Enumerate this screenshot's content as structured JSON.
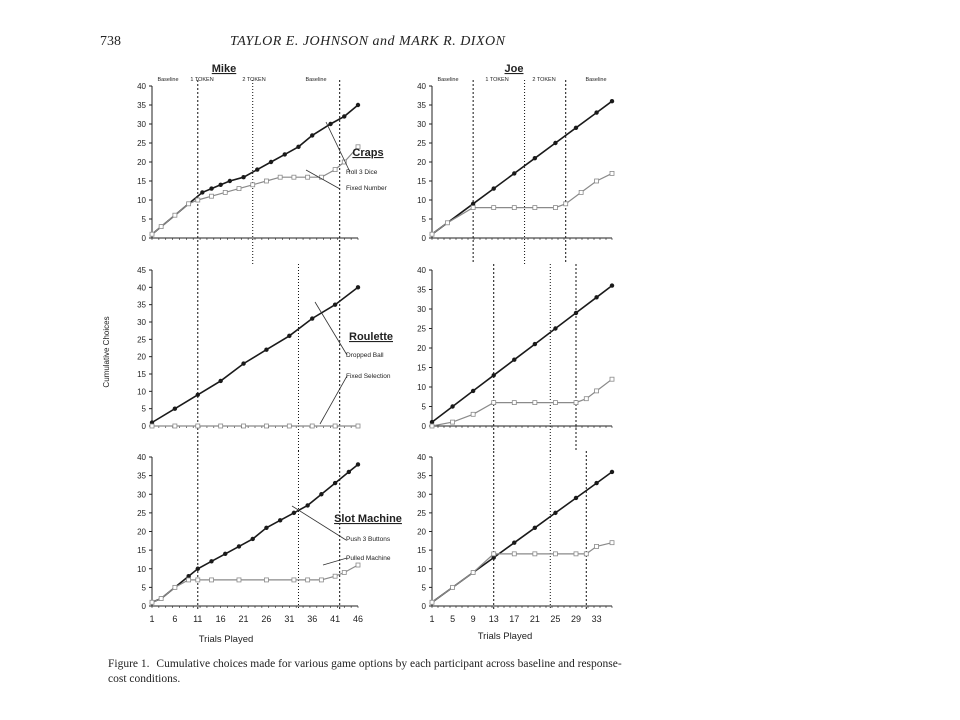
{
  "page": {
    "number": "738",
    "running_head": "TAYLOR E. JOHNSON and MARK R. DIXON",
    "caption_label": "Figure 1.",
    "caption_text": "Cumulative choices made for various game options by each participant across baseline and response-cost conditions.",
    "y_axis_label": "Cumulative Choices",
    "x_axis_label": "Trials Played"
  },
  "participants": [
    "Mike",
    "Joe"
  ],
  "phase_labels": [
    "Baseline",
    "1 TOKEN",
    "2 TOKEN",
    "Baseline"
  ],
  "games": [
    "Craps",
    "Roulette",
    "Slot Machine"
  ],
  "legend": {
    "craps": [
      "Roll 3 Dice",
      "Fixed Number"
    ],
    "roulette": [
      "Dropped Ball",
      "Fixed Selection"
    ],
    "slot": [
      "Push 3 Buttons",
      "Pulled Machine"
    ]
  },
  "colors": {
    "series_dark": "#1a1a1a",
    "series_light": "#8a8a8a",
    "axis": "#222222"
  },
  "chart_data": [
    {
      "type": "line",
      "panel": "Mike - Craps",
      "xlim": [
        1,
        46
      ],
      "ylim": [
        0,
        40
      ],
      "yticks": [
        0,
        5,
        10,
        15,
        20,
        25,
        30,
        35,
        40
      ],
      "phase_changes": [
        11,
        23,
        42
      ],
      "series": [
        {
          "name": "Roll 3 Dice",
          "x": [
            1,
            3,
            6,
            9,
            12,
            14,
            16,
            18,
            21,
            24,
            27,
            30,
            33,
            36,
            40,
            43,
            46
          ],
          "y": [
            1,
            3,
            6,
            9,
            12,
            13,
            14,
            15,
            16,
            18,
            20,
            22,
            24,
            27,
            30,
            32,
            35
          ]
        },
        {
          "name": "Fixed Number",
          "x": [
            1,
            3,
            6,
            9,
            11,
            14,
            17,
            20,
            23,
            26,
            29,
            32,
            35,
            38,
            41,
            43,
            46
          ],
          "y": [
            1,
            3,
            6,
            9,
            10,
            11,
            12,
            13,
            14,
            15,
            16,
            16,
            16,
            16,
            18,
            20,
            24
          ]
        }
      ]
    },
    {
      "type": "line",
      "panel": "Joe - Craps",
      "xlim": [
        1,
        36
      ],
      "ylim": [
        0,
        40
      ],
      "yticks": [
        0,
        5,
        10,
        15,
        20,
        25,
        30,
        35,
        40
      ],
      "phase_changes": [
        9,
        19,
        27
      ],
      "series": [
        {
          "name": "Roll 3 Dice",
          "x": [
            1,
            4,
            9,
            13,
            17,
            21,
            25,
            29,
            33,
            36
          ],
          "y": [
            1,
            4,
            9,
            13,
            17,
            21,
            25,
            29,
            33,
            36
          ]
        },
        {
          "name": "Fixed Number",
          "x": [
            1,
            4,
            9,
            13,
            17,
            21,
            25,
            27,
            30,
            33,
            36
          ],
          "y": [
            1,
            4,
            8,
            8,
            8,
            8,
            8,
            9,
            12,
            15,
            17
          ]
        }
      ]
    },
    {
      "type": "line",
      "panel": "Mike - Roulette",
      "xlim": [
        1,
        46
      ],
      "ylim": [
        0,
        45
      ],
      "yticks": [
        0,
        5,
        10,
        15,
        20,
        25,
        30,
        35,
        40,
        45
      ],
      "phase_changes": [
        11,
        33,
        42
      ],
      "series": [
        {
          "name": "Dropped Ball",
          "x": [
            1,
            6,
            11,
            16,
            21,
            26,
            31,
            36,
            41,
            46
          ],
          "y": [
            1,
            5,
            9,
            13,
            18,
            22,
            26,
            31,
            35,
            40
          ]
        },
        {
          "name": "Fixed Selection",
          "x": [
            1,
            6,
            11,
            16,
            21,
            26,
            31,
            36,
            41,
            46
          ],
          "y": [
            0,
            0,
            0,
            0,
            0,
            0,
            0,
            0,
            0,
            0
          ]
        }
      ]
    },
    {
      "type": "line",
      "panel": "Joe - Roulette",
      "xlim": [
        1,
        36
      ],
      "ylim": [
        0,
        40
      ],
      "yticks": [
        0,
        5,
        10,
        15,
        20,
        25,
        30,
        35,
        40
      ],
      "phase_changes": [
        13,
        24,
        29
      ],
      "series": [
        {
          "name": "Dropped Ball",
          "x": [
            1,
            5,
            9,
            13,
            17,
            21,
            25,
            29,
            33,
            36
          ],
          "y": [
            1,
            5,
            9,
            13,
            17,
            21,
            25,
            29,
            33,
            36
          ]
        },
        {
          "name": "Fixed Selection",
          "x": [
            1,
            5,
            9,
            13,
            17,
            21,
            25,
            29,
            31,
            33,
            36
          ],
          "y": [
            0,
            1,
            3,
            6,
            6,
            6,
            6,
            6,
            7,
            9,
            12
          ]
        }
      ]
    },
    {
      "type": "line",
      "panel": "Mike - Slot Machine",
      "xlim": [
        1,
        46
      ],
      "ylim": [
        0,
        40
      ],
      "yticks": [
        0,
        5,
        10,
        15,
        20,
        25,
        30,
        35,
        40
      ],
      "phase_changes": [
        11,
        33,
        42
      ],
      "series": [
        {
          "name": "Push 3 Buttons",
          "x": [
            1,
            3,
            6,
            9,
            11,
            14,
            17,
            20,
            23,
            26,
            29,
            32,
            35,
            38,
            41,
            44,
            46
          ],
          "y": [
            1,
            2,
            5,
            8,
            10,
            12,
            14,
            16,
            18,
            21,
            23,
            25,
            27,
            30,
            33,
            36,
            38
          ]
        },
        {
          "name": "Pulled Machine",
          "x": [
            1,
            3,
            6,
            9,
            11,
            14,
            20,
            26,
            32,
            35,
            38,
            41,
            43,
            46
          ],
          "y": [
            1,
            2,
            5,
            7,
            7,
            7,
            7,
            7,
            7,
            7,
            7,
            8,
            9,
            11
          ]
        }
      ]
    },
    {
      "type": "line",
      "panel": "Joe - Slot Machine",
      "xlim": [
        1,
        36
      ],
      "ylim": [
        0,
        40
      ],
      "yticks": [
        0,
        5,
        10,
        15,
        20,
        25,
        30,
        35,
        40
      ],
      "phase_changes": [
        13,
        24,
        31
      ],
      "series": [
        {
          "name": "Push 3 Buttons",
          "x": [
            1,
            5,
            9,
            13,
            17,
            21,
            25,
            29,
            33,
            36
          ],
          "y": [
            1,
            5,
            9,
            13,
            17,
            21,
            25,
            29,
            33,
            36
          ]
        },
        {
          "name": "Pulled Machine",
          "x": [
            1,
            5,
            9,
            13,
            17,
            21,
            25,
            29,
            31,
            33,
            36
          ],
          "y": [
            1,
            5,
            9,
            14,
            14,
            14,
            14,
            14,
            14,
            16,
            17
          ]
        }
      ]
    }
  ],
  "x_ticks": {
    "mike": [
      "1",
      "6",
      "11",
      "16",
      "21",
      "26",
      "31",
      "36",
      "41",
      "46"
    ],
    "joe": [
      "1",
      "5",
      "9",
      "13",
      "17",
      "21",
      "25",
      "29",
      "33"
    ]
  }
}
